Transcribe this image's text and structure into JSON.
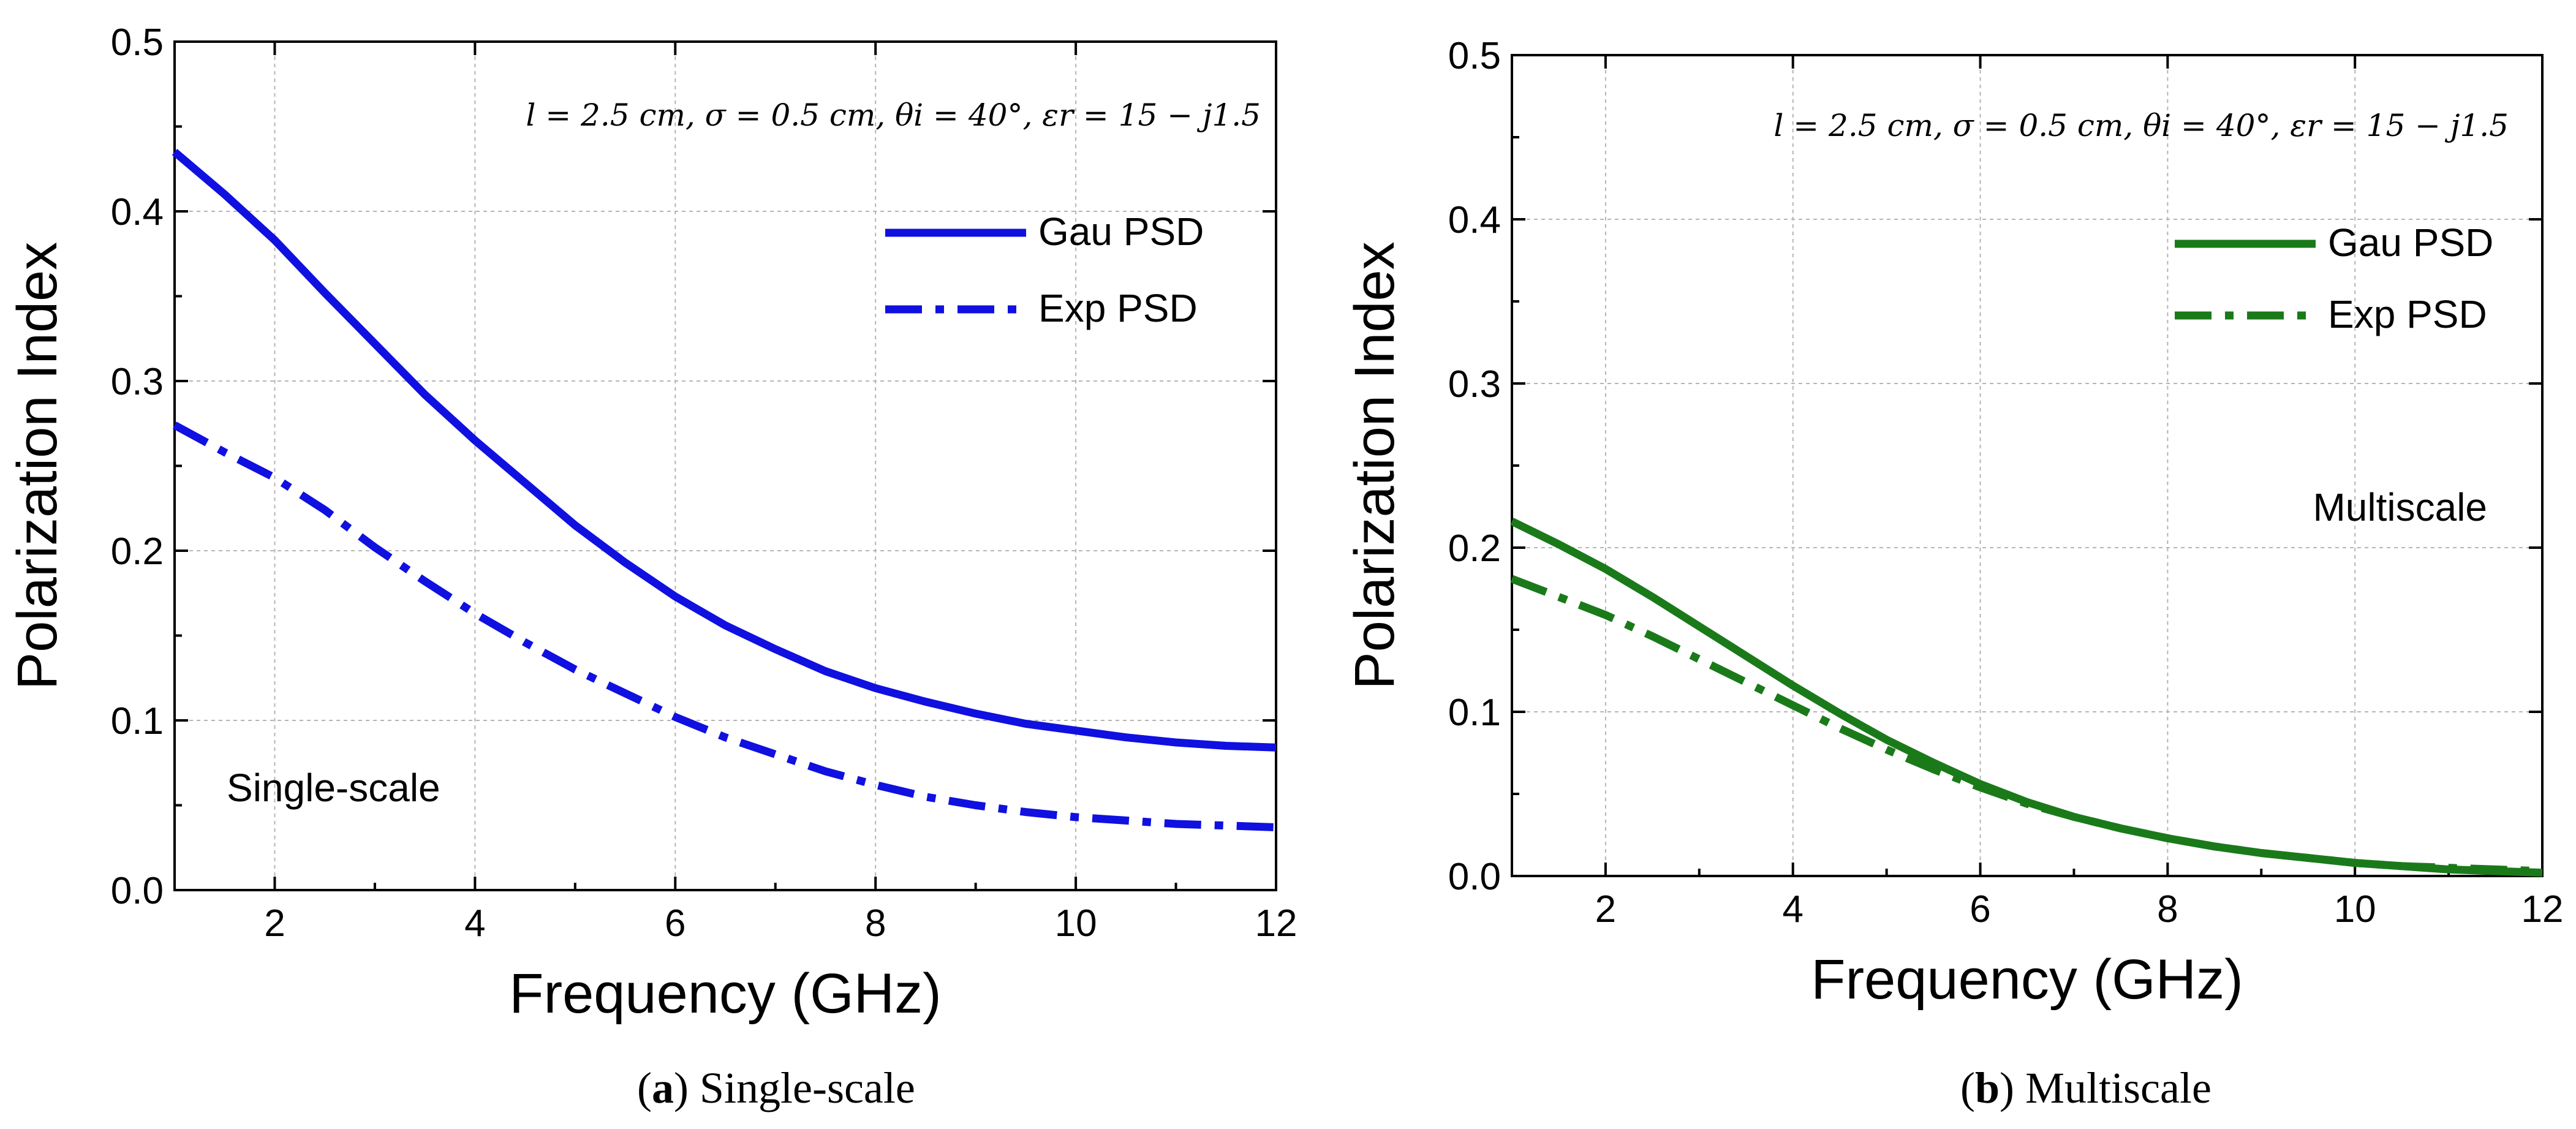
{
  "chart_data": [
    {
      "type": "line",
      "panel": "a",
      "ylabel": "Polarization Index",
      "xlabel": "Frequency (GHz)",
      "xlim": [
        1,
        12
      ],
      "ylim": [
        0,
        0.5
      ],
      "xticks": [
        2,
        4,
        6,
        8,
        10,
        12
      ],
      "yticks": [
        0.0,
        0.1,
        0.2,
        0.3,
        0.4,
        0.5
      ],
      "ytick_labels": [
        "0.0",
        "0.1",
        "0.2",
        "0.3",
        "0.4",
        "0.5"
      ],
      "grid": true,
      "parameters": "l = 2.5 cm, σ = 0.5 cm, θi = 40°, εr = 15 − j1.5",
      "annotation": "Single-scale",
      "legend_position": "top-right",
      "caption_letter": "(a)",
      "caption_text": "Single-scale",
      "color": "#1010e0",
      "series": [
        {
          "name": "Gau PSD",
          "style": "solid",
          "x": [
            1,
            1.5,
            2,
            2.5,
            3,
            3.5,
            4,
            4.5,
            5,
            5.5,
            6,
            6.5,
            7,
            7.5,
            8,
            8.5,
            9,
            9.5,
            10,
            10.5,
            11,
            11.5,
            12
          ],
          "values": [
            0.435,
            0.41,
            0.383,
            0.352,
            0.322,
            0.292,
            0.265,
            0.24,
            0.215,
            0.193,
            0.173,
            0.156,
            0.142,
            0.129,
            0.119,
            0.111,
            0.104,
            0.098,
            0.094,
            0.09,
            0.087,
            0.085,
            0.084
          ]
        },
        {
          "name": "Exp PSD",
          "style": "dash-dot",
          "x": [
            1,
            1.5,
            2,
            2.5,
            3,
            3.5,
            4,
            4.5,
            5,
            5.5,
            6,
            6.5,
            7,
            7.5,
            8,
            8.5,
            9,
            9.5,
            10,
            10.5,
            11,
            11.5,
            12
          ],
          "values": [
            0.274,
            0.258,
            0.243,
            0.224,
            0.202,
            0.182,
            0.163,
            0.146,
            0.13,
            0.116,
            0.102,
            0.09,
            0.08,
            0.07,
            0.062,
            0.055,
            0.05,
            0.046,
            0.043,
            0.041,
            0.039,
            0.038,
            0.037
          ]
        }
      ]
    },
    {
      "type": "line",
      "panel": "b",
      "ylabel": "Polarization Index",
      "xlabel": "Frequency (GHz)",
      "xlim": [
        1,
        12
      ],
      "ylim": [
        0,
        0.5
      ],
      "xticks": [
        2,
        4,
        6,
        8,
        10,
        12
      ],
      "yticks": [
        0.0,
        0.1,
        0.2,
        0.3,
        0.4,
        0.5
      ],
      "ytick_labels": [
        "0.0",
        "0.1",
        "0.2",
        "0.3",
        "0.4",
        "0.5"
      ],
      "grid": true,
      "parameters": "l = 2.5 cm, σ = 0.5 cm, θi = 40°, εr = 15 − j1.5",
      "annotation": "Multiscale",
      "legend_position": "top-right",
      "caption_letter": "(b)",
      "caption_text": "Multiscale",
      "color": "#1a7a1a",
      "series": [
        {
          "name": "Gau PSD",
          "style": "solid",
          "x": [
            1,
            1.5,
            2,
            2.5,
            3,
            3.5,
            4,
            4.5,
            5,
            5.5,
            6,
            6.5,
            7,
            7.5,
            8,
            8.5,
            9,
            9.5,
            10,
            10.5,
            11,
            11.5,
            12
          ],
          "values": [
            0.216,
            0.202,
            0.187,
            0.17,
            0.152,
            0.134,
            0.116,
            0.099,
            0.083,
            0.069,
            0.056,
            0.045,
            0.036,
            0.029,
            0.023,
            0.018,
            0.014,
            0.011,
            0.008,
            0.006,
            0.004,
            0.003,
            0.002
          ]
        },
        {
          "name": "Exp  PSD",
          "style": "dash-dot",
          "x": [
            1,
            1.5,
            2,
            2.5,
            3,
            3.5,
            4,
            4.5,
            5,
            5.5,
            6,
            6.5,
            7,
            7.5,
            8,
            8.5,
            9,
            9.5,
            10,
            10.5,
            11,
            11.5,
            12
          ],
          "values": [
            0.181,
            0.17,
            0.159,
            0.146,
            0.132,
            0.118,
            0.104,
            0.09,
            0.077,
            0.065,
            0.054,
            0.044,
            0.036,
            0.029,
            0.023,
            0.018,
            0.014,
            0.011,
            0.008,
            0.006,
            0.005,
            0.004,
            0.003
          ]
        }
      ]
    }
  ]
}
